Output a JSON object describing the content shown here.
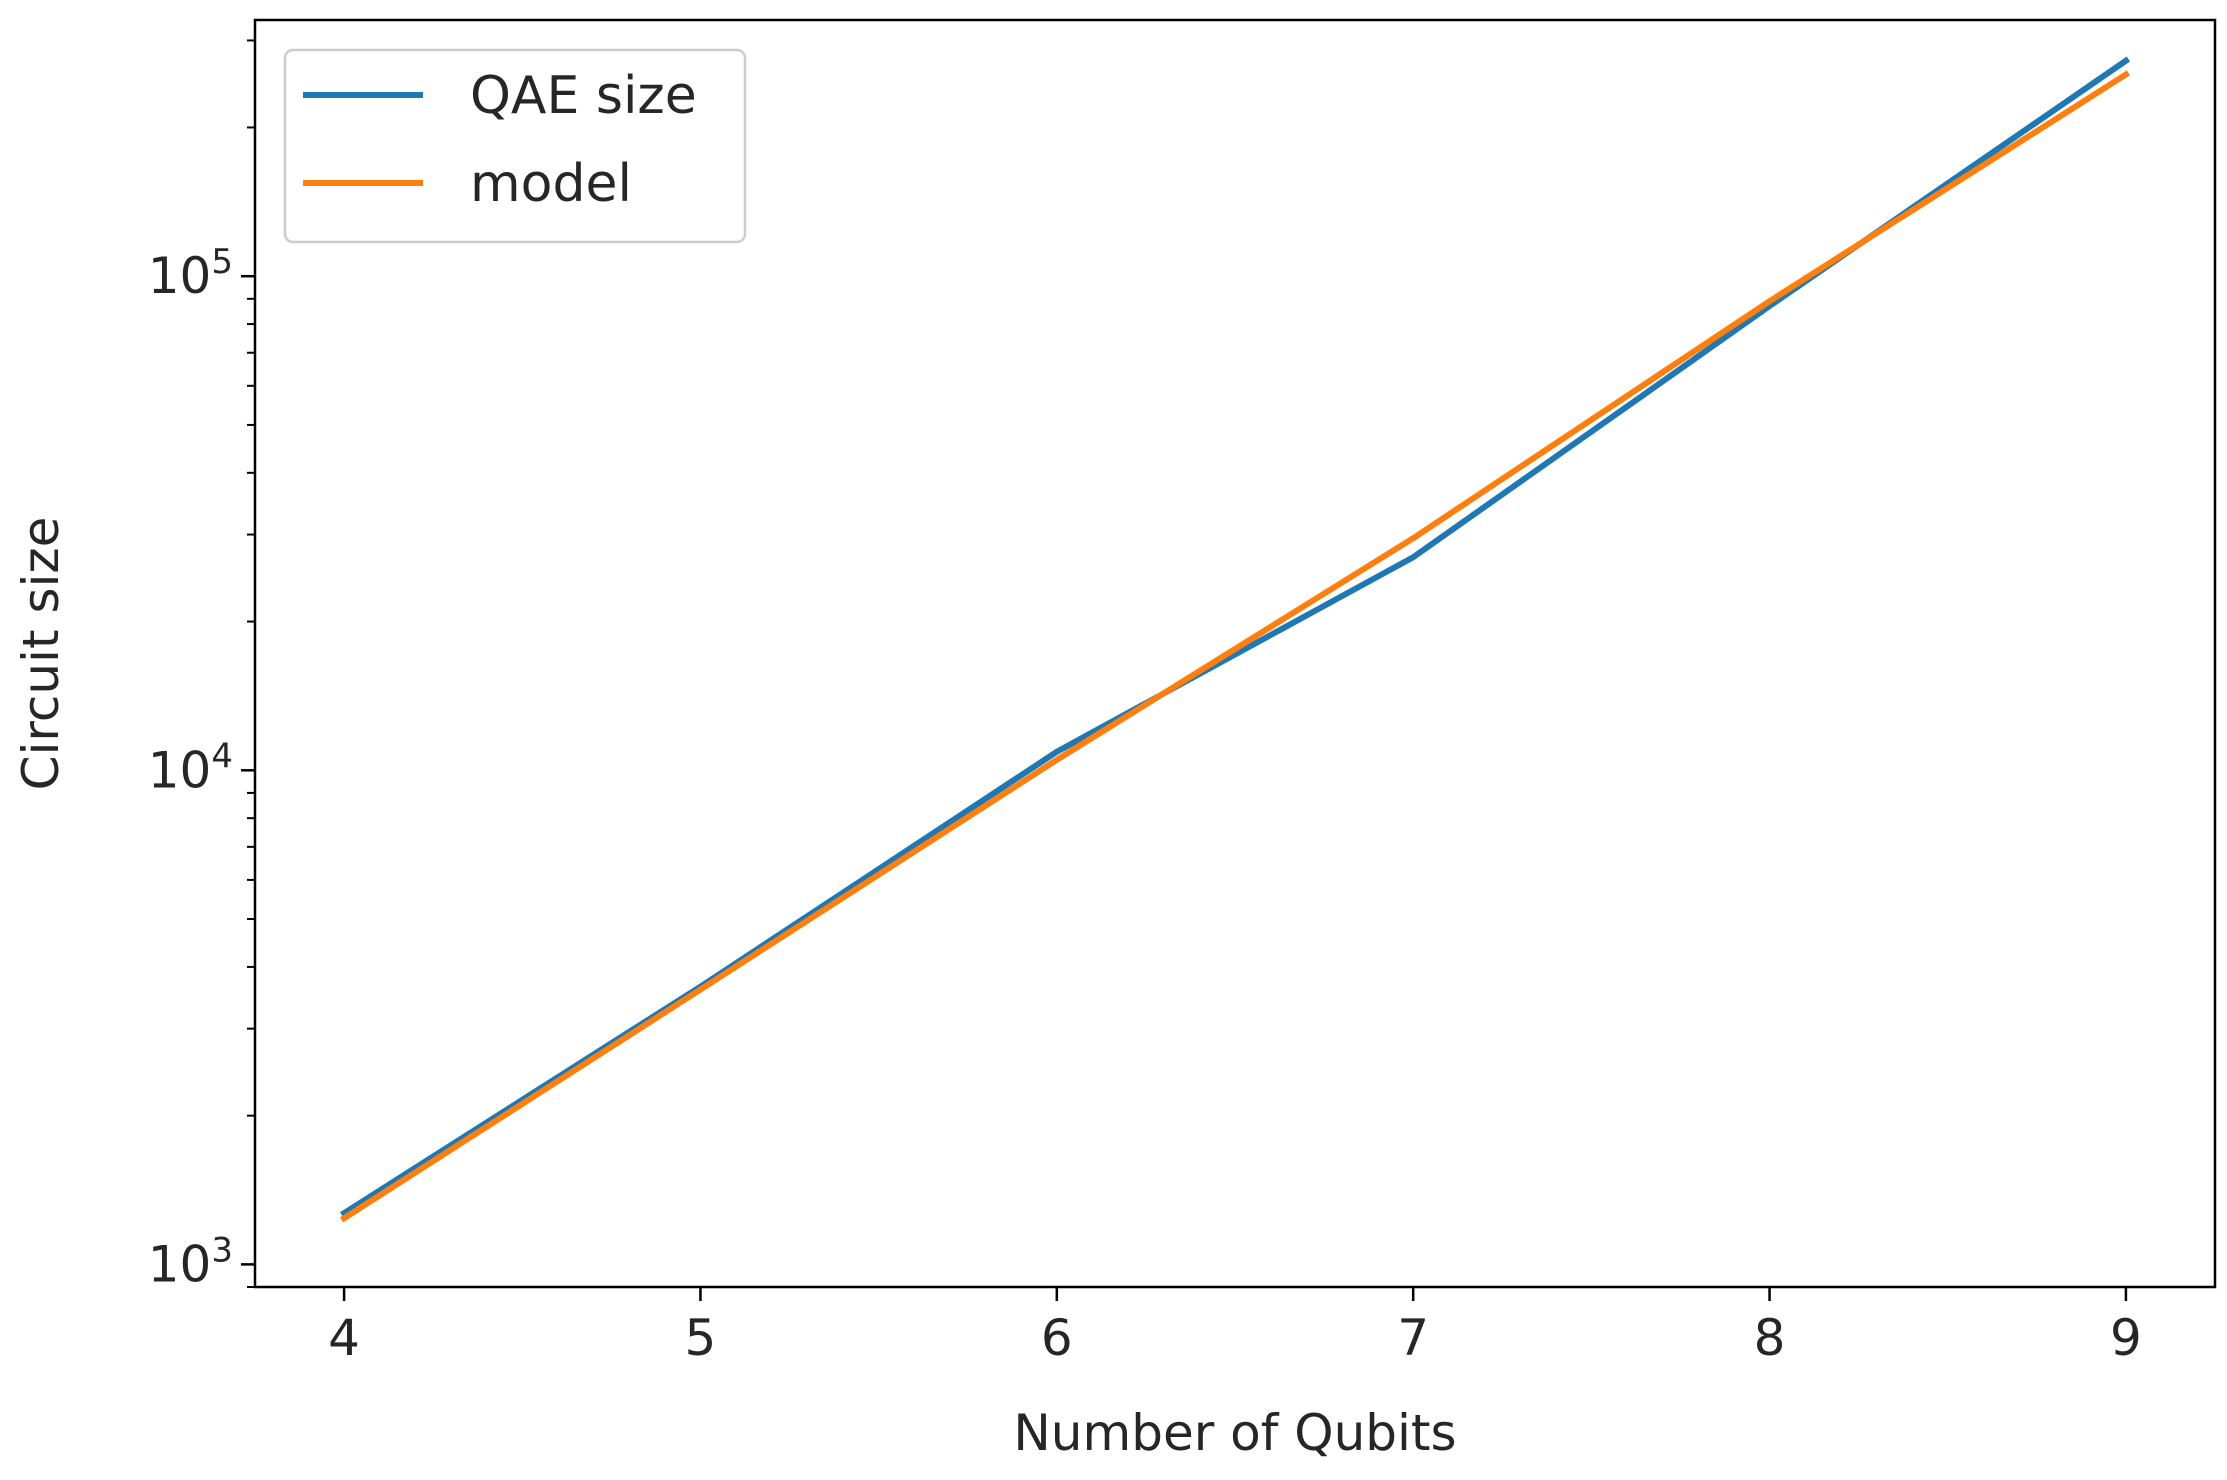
{
  "chart_data": {
    "type": "line",
    "title": "",
    "xlabel": "Number of Qubits",
    "ylabel": "Circuit size",
    "xlim": [
      3.75,
      9.25
    ],
    "ylim": [
      900,
      330000
    ],
    "yscale": "log",
    "grid": false,
    "legend_position": "top-left",
    "x_ticks": [
      {
        "value": 4,
        "label": "4"
      },
      {
        "value": 5,
        "label": "5"
      },
      {
        "value": 6,
        "label": "6"
      },
      {
        "value": 7,
        "label": "7"
      },
      {
        "value": 8,
        "label": "8"
      },
      {
        "value": 9,
        "label": "9"
      }
    ],
    "y_ticks": [
      {
        "value": 1000,
        "base": "10",
        "exp": "3"
      },
      {
        "value": 10000,
        "base": "10",
        "exp": "4"
      },
      {
        "value": 100000,
        "base": "10",
        "exp": "5"
      }
    ],
    "x": [
      4,
      5,
      6,
      7,
      8,
      9
    ],
    "series": [
      {
        "name": "QAE size",
        "color": "#1f77b4",
        "values": [
          1270,
          3650,
          10900,
          27000,
          87000,
          273000
        ]
      },
      {
        "name": "model",
        "color": "#ff7f0e",
        "values": [
          1240,
          3600,
          10500,
          29500,
          89000,
          256000
        ]
      }
    ]
  }
}
